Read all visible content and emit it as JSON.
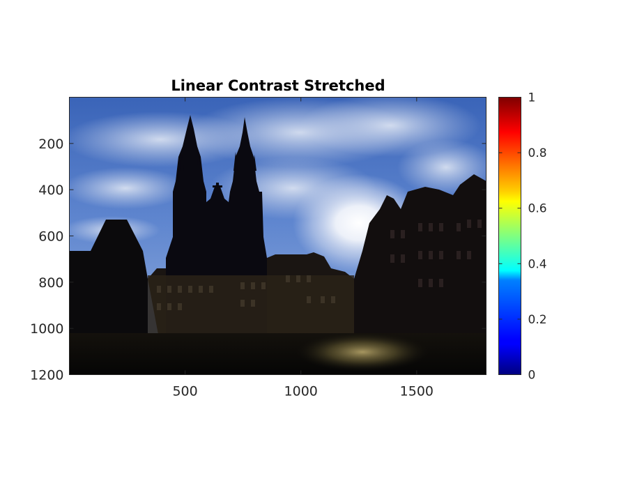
{
  "chart_data": {
    "type": "heatmap",
    "title": "Linear Contrast Stretched",
    "xlabel": "",
    "ylabel": "",
    "xlim": [
      0,
      1800
    ],
    "ylim": [
      0,
      1200
    ],
    "y_reversed": true,
    "x_ticks": [
      500,
      1000,
      1500
    ],
    "x_tick_labels": [
      "500",
      "1000",
      "1500"
    ],
    "y_ticks": [
      200,
      400,
      600,
      800,
      1000,
      1200
    ],
    "y_tick_labels": [
      "200",
      "400",
      "600",
      "800",
      "1000",
      "1200"
    ],
    "image": "Old Town Square at sunrise, silhouetted twin-spired church and buildings against a bright cloudy blue sky",
    "colorbar": {
      "colormap": "jet",
      "range": [
        0,
        1
      ],
      "ticks": [
        0,
        0.2,
        0.4,
        0.6,
        0.8,
        1
      ],
      "tick_labels": [
        "0",
        "0.2",
        "0.4",
        "0.6",
        "0.8",
        "1"
      ],
      "location": "right"
    },
    "grid": false,
    "legend": "none"
  }
}
